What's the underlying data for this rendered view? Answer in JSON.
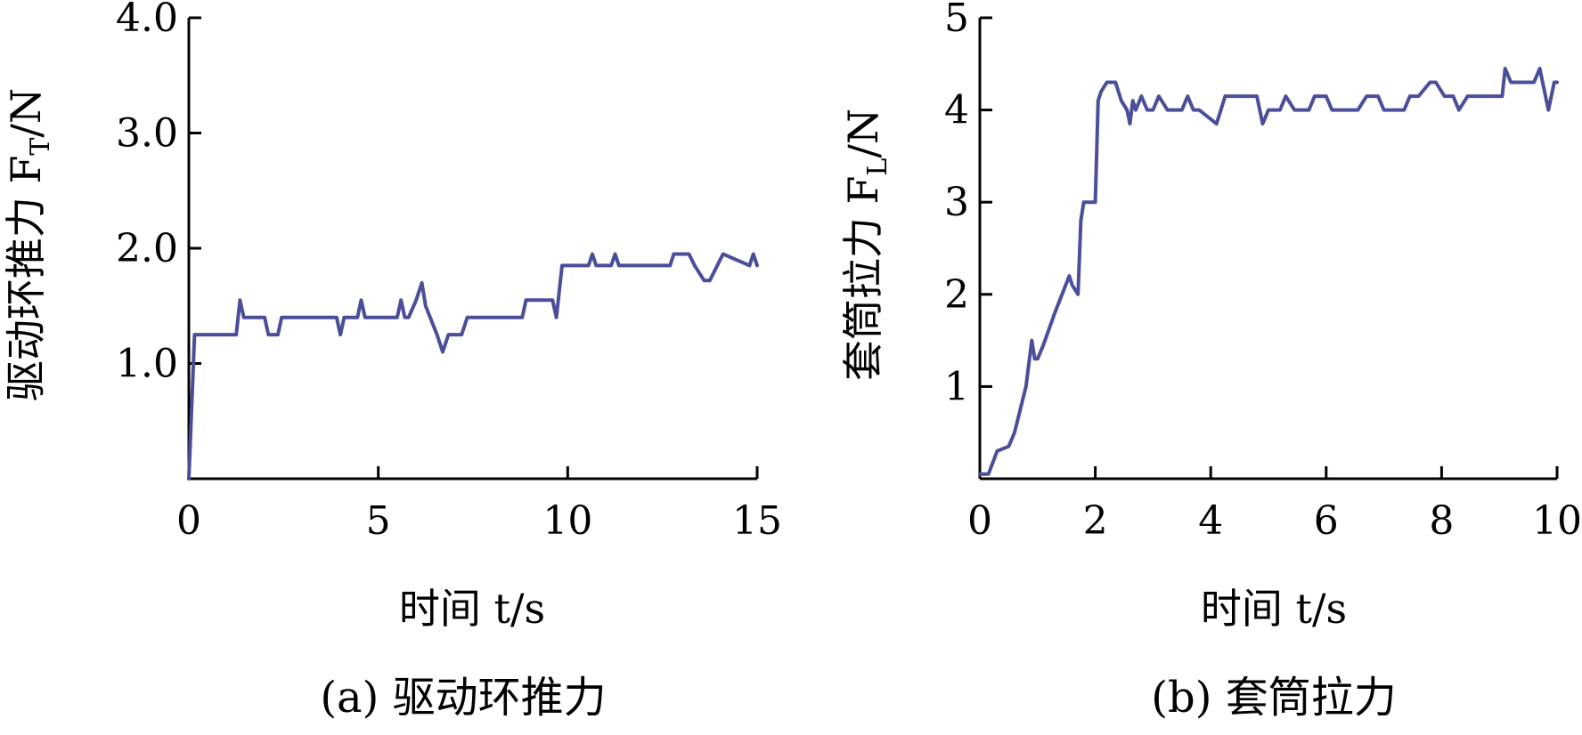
{
  "chart_data": [
    {
      "type": "line",
      "caption": "(a) 驱动环推力",
      "xlabel": "时间 t/s",
      "ylabel": "驱动环推力 F",
      "ylabel_sub": "T",
      "ylabel_unit": "/N",
      "xlim": [
        0,
        15
      ],
      "ylim": [
        0,
        4.0
      ],
      "xticks": [
        0,
        5,
        10,
        15
      ],
      "xtick_labels": [
        "0",
        "5",
        "10",
        "15"
      ],
      "yticks": [
        1.0,
        2.0,
        3.0,
        4.0
      ],
      "ytick_labels": [
        "1.0",
        "2.0",
        "3.0",
        "4.0"
      ],
      "color": "#4B4F99",
      "series": [
        {
          "x": [
            0,
            0.15,
            1.25,
            1.35,
            1.45,
            2.0,
            2.1,
            2.35,
            2.45,
            3.9,
            4.0,
            4.1,
            4.45,
            4.55,
            4.65,
            5.5,
            5.6,
            5.7,
            5.8,
            6.0,
            6.15,
            6.25,
            6.55,
            6.7,
            6.85,
            7.2,
            7.35,
            8.8,
            8.9,
            9.6,
            9.7,
            9.85,
            10.55,
            10.65,
            10.75,
            11.15,
            11.25,
            11.35,
            12.7,
            12.8,
            13.2,
            13.35,
            13.6,
            13.75,
            14.1,
            14.8,
            14.9,
            15.0
          ],
          "y": [
            0,
            1.25,
            1.25,
            1.55,
            1.4,
            1.4,
            1.25,
            1.25,
            1.4,
            1.4,
            1.25,
            1.4,
            1.4,
            1.55,
            1.4,
            1.4,
            1.55,
            1.4,
            1.4,
            1.55,
            1.7,
            1.5,
            1.25,
            1.1,
            1.25,
            1.25,
            1.4,
            1.4,
            1.55,
            1.55,
            1.4,
            1.85,
            1.85,
            1.95,
            1.85,
            1.85,
            1.95,
            1.85,
            1.85,
            1.95,
            1.95,
            1.85,
            1.72,
            1.72,
            1.95,
            1.85,
            1.95,
            1.85
          ]
        }
      ]
    },
    {
      "type": "line",
      "caption": "(b) 套筒拉力",
      "xlabel": "时间 t/s",
      "ylabel": "套筒拉力 F",
      "ylabel_sub": "L",
      "ylabel_unit": "/N",
      "xlim": [
        0,
        10
      ],
      "ylim": [
        0,
        5
      ],
      "xticks": [
        0,
        2,
        4,
        6,
        8,
        10
      ],
      "xtick_labels": [
        "0",
        "2",
        "4",
        "6",
        "8",
        "10"
      ],
      "yticks": [
        1,
        2,
        3,
        4,
        5
      ],
      "ytick_labels": [
        "1",
        "2",
        "3",
        "4",
        "5"
      ],
      "color": "#4B4F99",
      "series": [
        {
          "x": [
            0,
            0.15,
            0.3,
            0.5,
            0.6,
            0.8,
            0.9,
            0.95,
            1.0,
            1.1,
            1.3,
            1.55,
            1.6,
            1.7,
            1.75,
            1.8,
            2.0,
            2.05,
            2.1,
            2.2,
            2.35,
            2.45,
            2.55,
            2.6,
            2.65,
            2.7,
            2.8,
            2.9,
            3.0,
            3.1,
            3.25,
            3.5,
            3.6,
            3.7,
            3.8,
            4.1,
            4.25,
            4.8,
            4.9,
            5.0,
            5.2,
            5.3,
            5.45,
            5.7,
            5.8,
            6.0,
            6.1,
            6.55,
            6.7,
            6.9,
            7.0,
            7.35,
            7.45,
            7.6,
            7.8,
            7.9,
            8.05,
            8.2,
            8.3,
            8.45,
            9.05,
            9.1,
            9.2,
            9.6,
            9.7,
            9.75,
            9.85,
            9.95,
            10.0
          ],
          "y": [
            0.05,
            0.05,
            0.3,
            0.35,
            0.5,
            1.0,
            1.5,
            1.3,
            1.3,
            1.45,
            1.8,
            2.2,
            2.1,
            2.0,
            2.8,
            3.0,
            3.0,
            4.1,
            4.2,
            4.3,
            4.3,
            4.1,
            4.0,
            3.85,
            4.1,
            4.0,
            4.15,
            4.0,
            4.0,
            4.15,
            4.0,
            4.0,
            4.15,
            4.0,
            4.0,
            3.85,
            4.15,
            4.15,
            3.85,
            4.0,
            4.0,
            4.15,
            4.0,
            4.0,
            4.15,
            4.15,
            4.0,
            4.0,
            4.15,
            4.15,
            4.0,
            4.0,
            4.15,
            4.15,
            4.3,
            4.3,
            4.15,
            4.15,
            4.0,
            4.15,
            4.15,
            4.45,
            4.3,
            4.3,
            4.45,
            4.3,
            4.0,
            4.3,
            4.3
          ]
        }
      ]
    }
  ]
}
